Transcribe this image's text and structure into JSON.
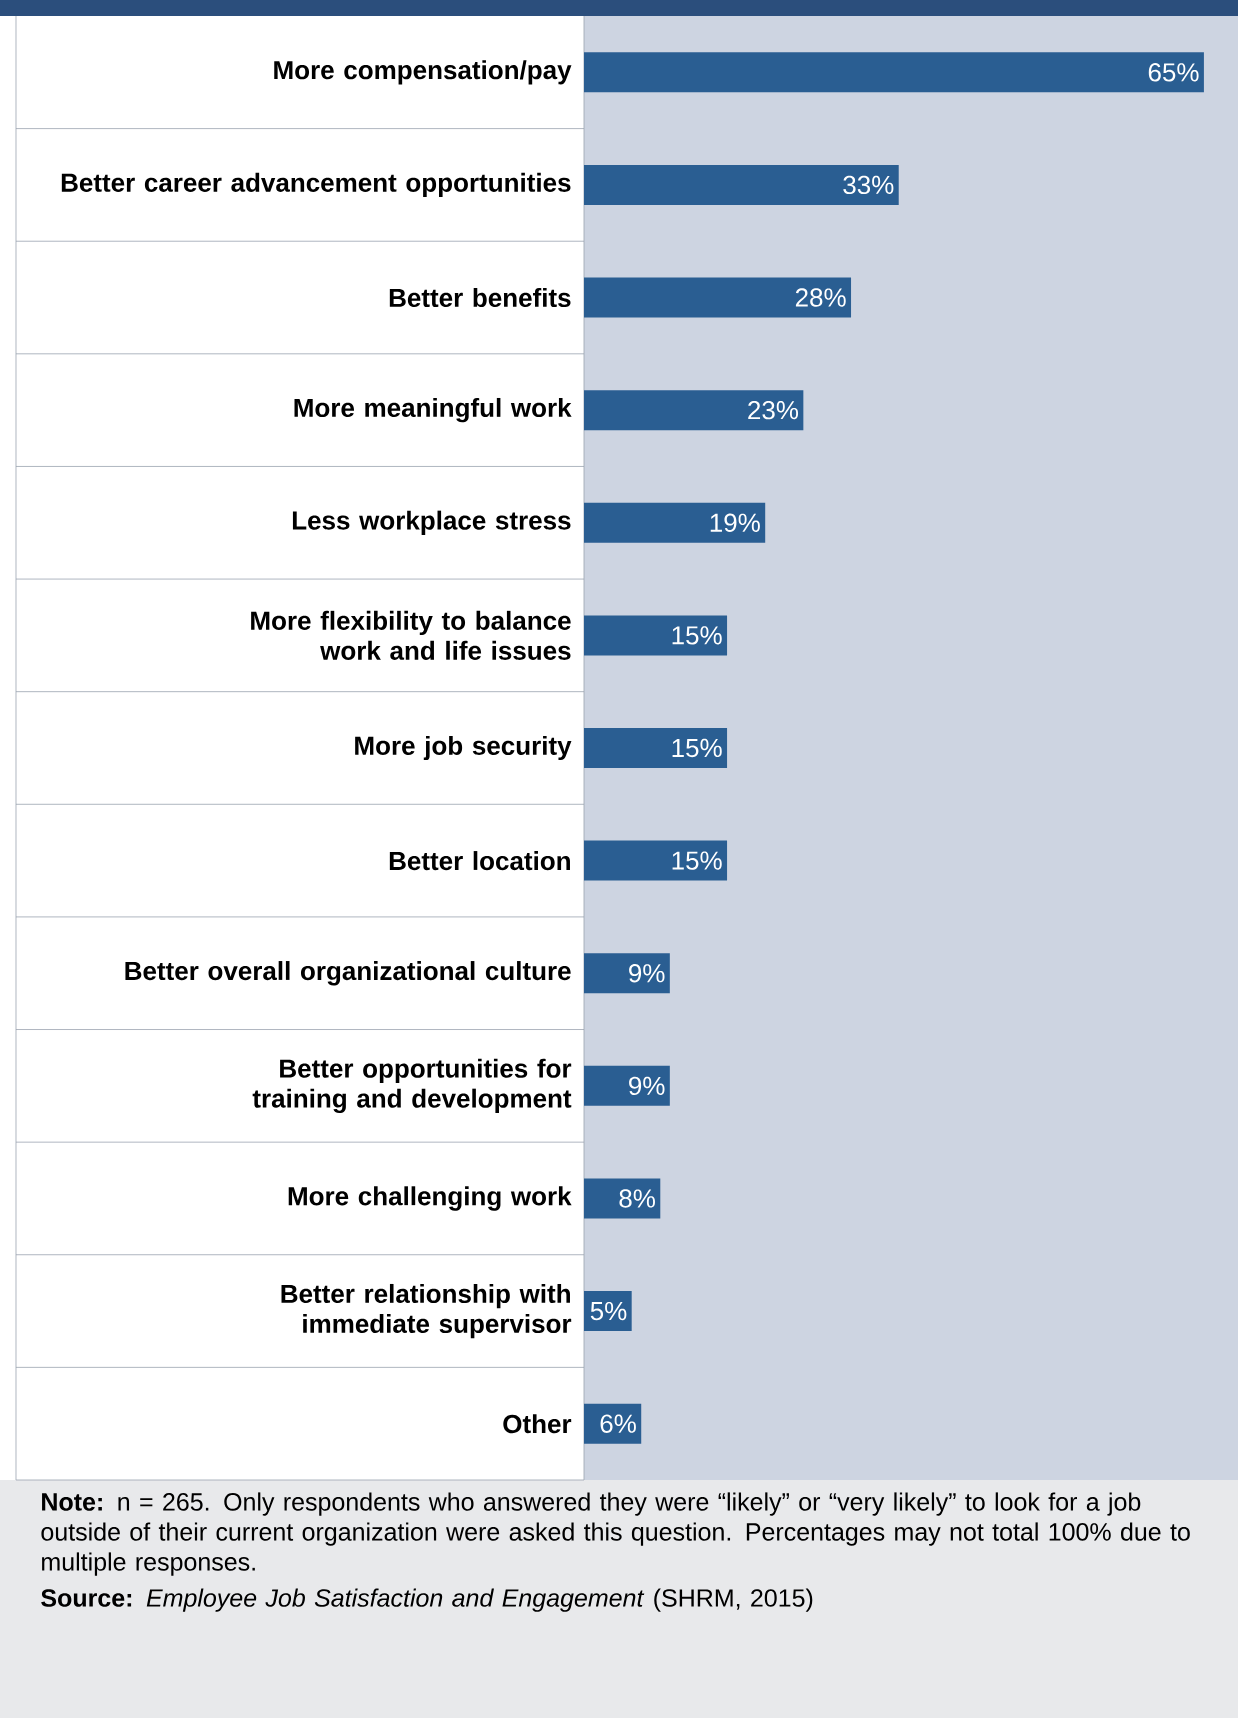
{
  "chart_data": {
    "type": "bar",
    "orientation": "horizontal",
    "categories": [
      "More compensation/pay",
      "Better career advancement opportunities",
      "Better benefits",
      "More meaningful work",
      "Less workplace stress",
      "More flexibility to balance work and life issues",
      "More job security",
      "Better location",
      "Better overall organizational culture",
      "Better opportunities for training and development",
      "More challenging work",
      "Better relationship with immediate supervisor",
      "Other"
    ],
    "values": [
      65,
      33,
      28,
      23,
      19,
      15,
      15,
      15,
      9,
      9,
      8,
      5,
      6
    ],
    "value_labels": [
      "65%",
      "33%",
      "28%",
      "23%",
      "19%",
      "15%",
      "15%",
      "15%",
      "9%",
      "9%",
      "8%",
      "5%",
      "6%"
    ],
    "color": "#2a5e92",
    "annotations": [
      "**Note:** n = 265. Only respondents who answered they were “likely” or “very likely” to look for a job outside of their current organization were asked this question. Percentages may not total 100% due to multiple responses.",
      "**Source:** *Employee Job Satisfaction and Engagement* (SHRM, 2015)"
    ]
  }
}
